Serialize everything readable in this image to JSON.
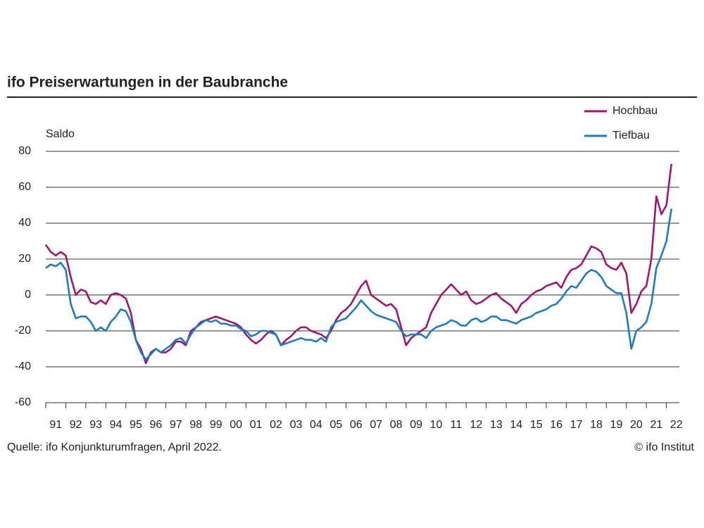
{
  "chart_data": {
    "type": "line",
    "title": "ifo Preiserwartungen in der Baubranche",
    "y_label": "Saldo",
    "source": "Quelle: ifo Konjunkturumfragen, April 2022.",
    "copyright": "© ifo Institut",
    "legend": "top-right",
    "grid": true,
    "ylim": [
      -60,
      80
    ],
    "yticks": [
      -60,
      -40,
      -20,
      0,
      20,
      40,
      60,
      80
    ],
    "xlim": [
      1991,
      2023
    ],
    "xticks": [
      {
        "value": 1991,
        "label": "91"
      },
      {
        "value": 1992,
        "label": "92"
      },
      {
        "value": 1993,
        "label": "93"
      },
      {
        "value": 1994,
        "label": "94"
      },
      {
        "value": 1995,
        "label": "95"
      },
      {
        "value": 1996,
        "label": "96"
      },
      {
        "value": 1997,
        "label": "97"
      },
      {
        "value": 1998,
        "label": "98"
      },
      {
        "value": 1999,
        "label": "99"
      },
      {
        "value": 2000,
        "label": "00"
      },
      {
        "value": 2001,
        "label": "01"
      },
      {
        "value": 2002,
        "label": "02"
      },
      {
        "value": 2003,
        "label": "03"
      },
      {
        "value": 2004,
        "label": "04"
      },
      {
        "value": 2005,
        "label": "05"
      },
      {
        "value": 2006,
        "label": "06"
      },
      {
        "value": 2007,
        "label": "07"
      },
      {
        "value": 2008,
        "label": "08"
      },
      {
        "value": 2009,
        "label": "09"
      },
      {
        "value": 2010,
        "label": "10"
      },
      {
        "value": 2011,
        "label": "11"
      },
      {
        "value": 2012,
        "label": "12"
      },
      {
        "value": 2013,
        "label": "13"
      },
      {
        "value": 2014,
        "label": "14"
      },
      {
        "value": 2015,
        "label": "15"
      },
      {
        "value": 2016,
        "label": "16"
      },
      {
        "value": 2017,
        "label": "17"
      },
      {
        "value": 2018,
        "label": "18"
      },
      {
        "value": 2019,
        "label": "19"
      },
      {
        "value": 2020,
        "label": "20"
      },
      {
        "value": 2021,
        "label": "21"
      },
      {
        "value": 2022,
        "label": "22"
      }
    ],
    "x": [
      1991,
      1991.25,
      1991.5,
      1991.75,
      1992,
      1992.25,
      1992.5,
      1992.75,
      1993,
      1993.25,
      1993.5,
      1993.75,
      1994,
      1994.25,
      1994.5,
      1994.75,
      1995,
      1995.25,
      1995.5,
      1995.75,
      1996,
      1996.25,
      1996.5,
      1996.75,
      1997,
      1997.25,
      1997.5,
      1997.75,
      1998,
      1998.25,
      1998.5,
      1998.75,
      1999,
      1999.25,
      1999.5,
      1999.75,
      2000,
      2000.25,
      2000.5,
      2000.75,
      2001,
      2001.25,
      2001.5,
      2001.75,
      2002,
      2002.25,
      2002.5,
      2002.75,
      2003,
      2003.25,
      2003.5,
      2003.75,
      2004,
      2004.25,
      2004.5,
      2004.75,
      2005,
      2005.25,
      2005.5,
      2005.75,
      2006,
      2006.25,
      2006.5,
      2006.75,
      2007,
      2007.25,
      2007.5,
      2007.75,
      2008,
      2008.25,
      2008.5,
      2008.75,
      2009,
      2009.25,
      2009.5,
      2009.75,
      2010,
      2010.25,
      2010.5,
      2010.75,
      2011,
      2011.25,
      2011.5,
      2011.75,
      2012,
      2012.25,
      2012.5,
      2012.75,
      2013,
      2013.25,
      2013.5,
      2013.75,
      2014,
      2014.25,
      2014.5,
      2014.75,
      2015,
      2015.25,
      2015.5,
      2015.75,
      2016,
      2016.25,
      2016.5,
      2016.75,
      2017,
      2017.25,
      2017.5,
      2017.75,
      2018,
      2018.25,
      2018.5,
      2018.75,
      2019,
      2019.25,
      2019.5,
      2019.75,
      2020,
      2020.25,
      2020.5,
      2020.75,
      2021,
      2021.25,
      2021.5,
      2021.75,
      2022,
      2022.25
    ],
    "series": [
      {
        "name": "Hochbau",
        "color": "#a0166e",
        "values": [
          28,
          24,
          22,
          24,
          22,
          10,
          0,
          3,
          2,
          -4,
          -5,
          -3,
          -5,
          0,
          1,
          0,
          -2,
          -10,
          -25,
          -30,
          -38,
          -32,
          -30,
          -32,
          -32,
          -30,
          -26,
          -26,
          -28,
          -20,
          -18,
          -15,
          -14,
          -13,
          -12,
          -13,
          -14,
          -15,
          -16,
          -18,
          -22,
          -25,
          -27,
          -25,
          -22,
          -20,
          -22,
          -28,
          -25,
          -23,
          -20,
          -18,
          -18,
          -20,
          -21,
          -22,
          -24,
          -20,
          -14,
          -10,
          -8,
          -5,
          0,
          5,
          8,
          0,
          -2,
          -4,
          -6,
          -5,
          -8,
          -18,
          -28,
          -24,
          -22,
          -20,
          -18,
          -10,
          -5,
          0,
          3,
          6,
          3,
          0,
          2,
          -3,
          -5,
          -4,
          -2,
          0,
          1,
          -2,
          -4,
          -6,
          -10,
          -5,
          -3,
          0,
          2,
          3,
          5,
          6,
          7,
          4,
          10,
          14,
          15,
          17,
          22,
          27,
          26,
          24,
          17,
          15,
          14,
          18,
          12,
          -10,
          -5,
          2,
          5,
          20,
          55,
          45,
          50,
          73
        ]
      },
      {
        "name": "Tiefbau",
        "color": "#1f7bc1",
        "values": [
          15,
          17,
          16,
          18,
          14,
          -5,
          -13,
          -12,
          -12,
          -15,
          -20,
          -18,
          -20,
          -15,
          -12,
          -8,
          -9,
          -15,
          -25,
          -32,
          -36,
          -33,
          -30,
          -32,
          -30,
          -28,
          -25,
          -24,
          -27,
          -22,
          -18,
          -16,
          -14,
          -15,
          -14,
          -16,
          -16,
          -17,
          -17,
          -19,
          -20,
          -23,
          -22,
          -20,
          -20,
          -21,
          -22,
          -28,
          -27,
          -26,
          -25,
          -24,
          -25,
          -25,
          -26,
          -24,
          -26,
          -18,
          -15,
          -14,
          -13,
          -10,
          -7,
          -3,
          -6,
          -9,
          -11,
          -12,
          -13,
          -14,
          -15,
          -20,
          -23,
          -22,
          -22,
          -22,
          -24,
          -20,
          -18,
          -17,
          -16,
          -14,
          -15,
          -17,
          -17,
          -14,
          -13,
          -15,
          -14,
          -12,
          -12,
          -14,
          -14,
          -15,
          -16,
          -14,
          -13,
          -12,
          -10,
          -9,
          -8,
          -6,
          -5,
          -2,
          2,
          5,
          4,
          8,
          12,
          14,
          13,
          10,
          5,
          3,
          1,
          1,
          -10,
          -30,
          -20,
          -18,
          -15,
          -5,
          15,
          22,
          30,
          48
        ]
      }
    ]
  }
}
